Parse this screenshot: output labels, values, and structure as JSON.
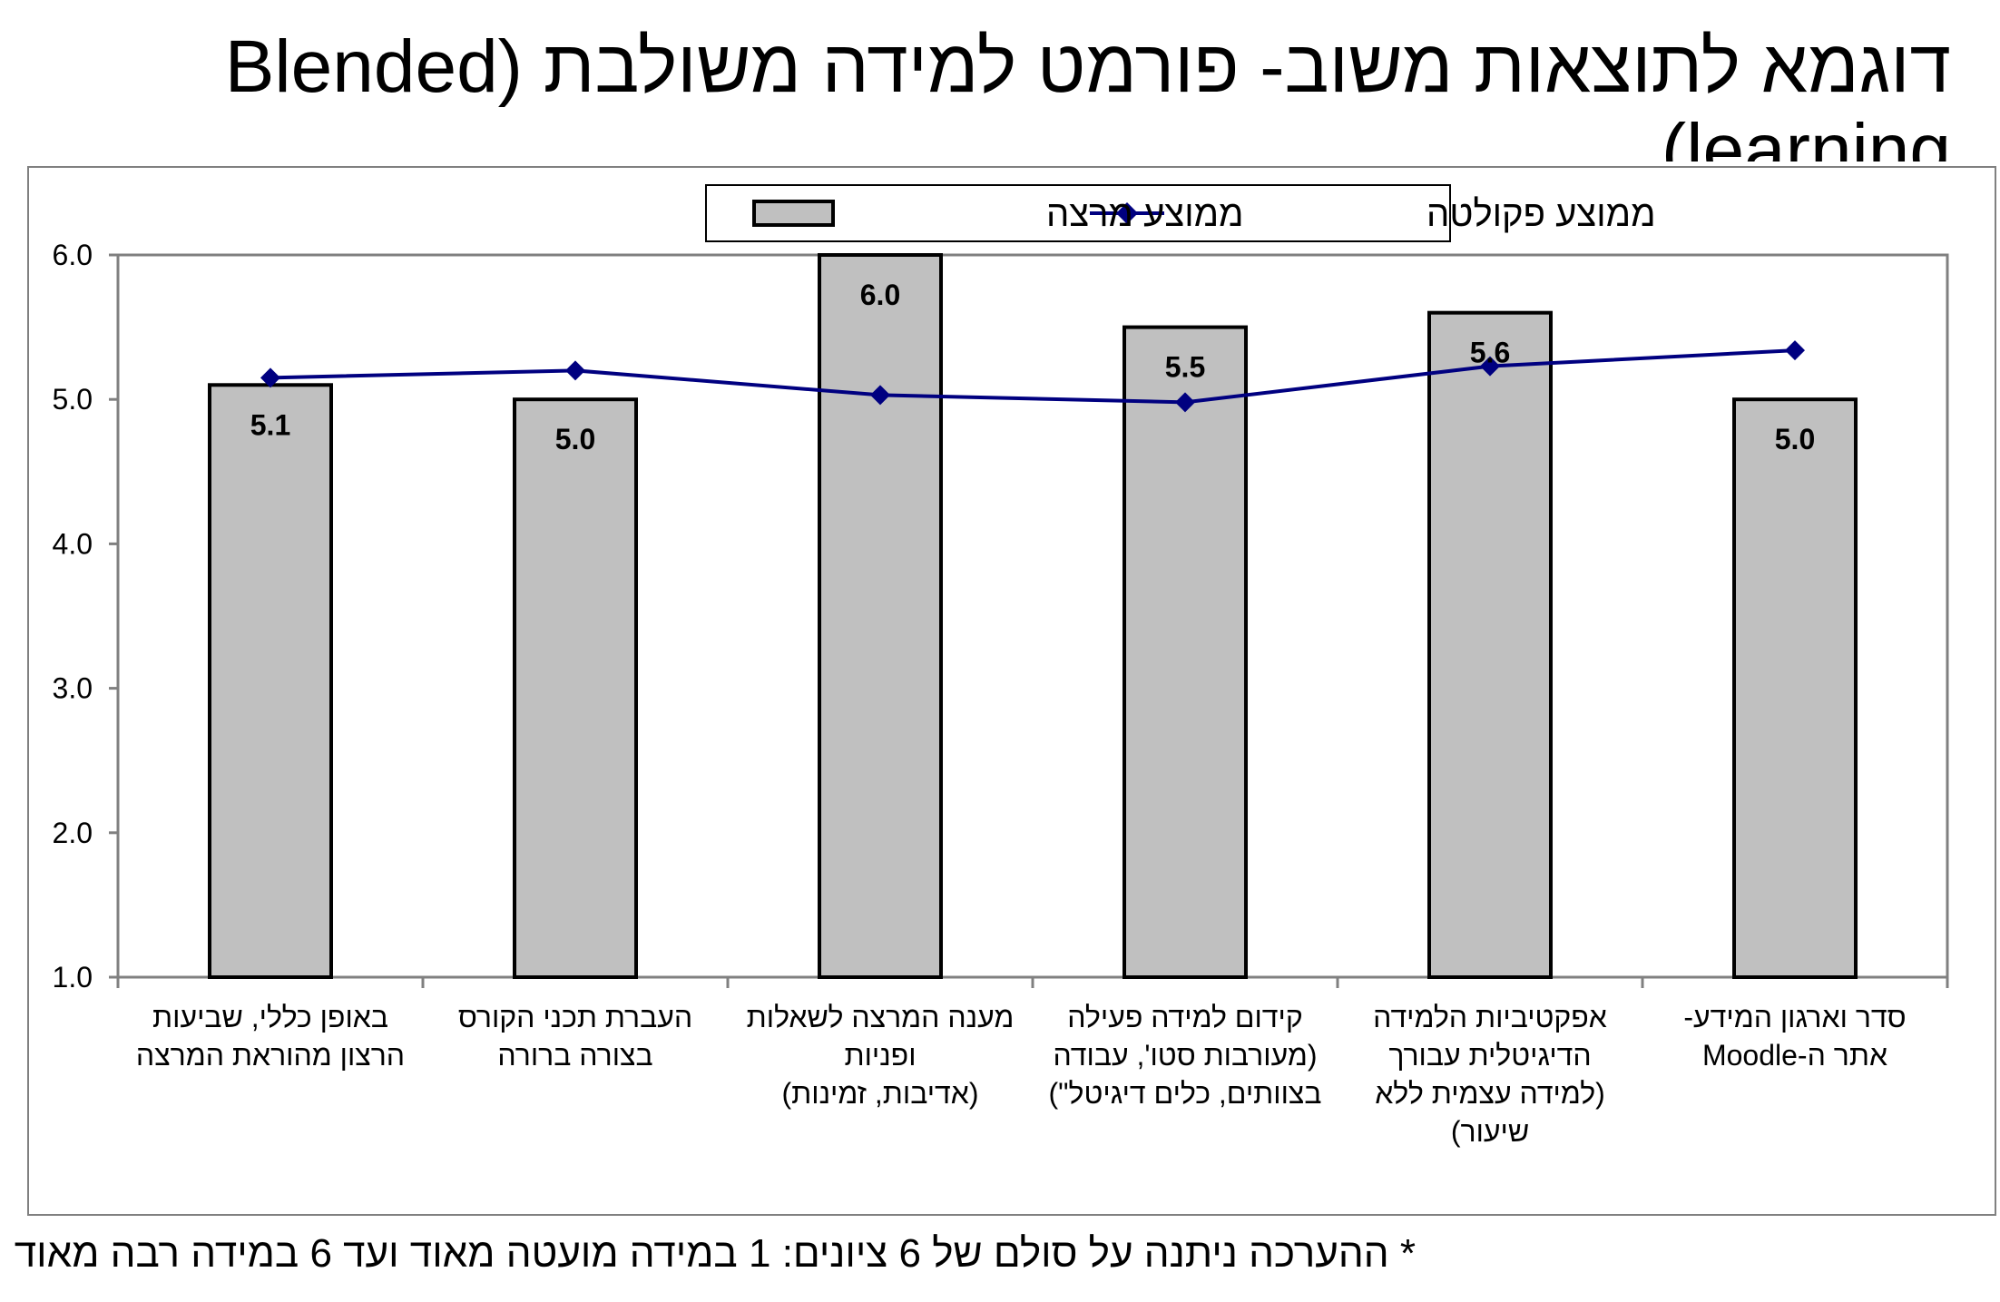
{
  "title": "דוגמא לתוצאות משוב- פורמט למידה משולבת (Blended learning)",
  "footnote": "* ההערכה ניתנה על סולם של 6 ציונים: 1 במידה מועטה מאוד ועד 6 במידה רבה מאוד",
  "chart_data": {
    "type": "bar",
    "categories": [
      [
        "באופן כללי, שביעות",
        "הרצון מהוראת המרצה"
      ],
      [
        "העברת תכני הקורס",
        "בצורה ברורה"
      ],
      [
        "מענה המרצה לשאלות",
        "ופניות",
        "(אדיבות, זמינות)"
      ],
      [
        "קידום למידה פעילה",
        "(מעורבות סטו', עבודה",
        "בצוותים, כלים דיגיטל\")"
      ],
      [
        "אפקטיביות הלמידה",
        "הדיגיטלית עבורך",
        "(למידה עצמית ללא",
        "שיעור)"
      ],
      [
        "סדר וארגון המידע-",
        "אתר ה-Moodle"
      ]
    ],
    "series": [
      {
        "name": "ממוצע מרצה",
        "kind": "bar",
        "values": [
          5.1,
          5.0,
          6.0,
          5.5,
          5.6,
          5.0
        ],
        "data_labels": [
          "5.1",
          "5.0",
          "6.0",
          "5.5",
          "5.6",
          "5.0"
        ],
        "color": "#c0c0c0",
        "edge": "#000000"
      },
      {
        "name": "ממוצע פקולטה",
        "kind": "line",
        "values": [
          5.15,
          5.2,
          5.03,
          4.98,
          5.23,
          5.34
        ],
        "color": "#000080"
      }
    ],
    "ylim": [
      1.0,
      6.0
    ],
    "yticks": [
      "1.0",
      "2.0",
      "3.0",
      "4.0",
      "5.0",
      "6.0"
    ],
    "legend_position": "top",
    "grid": false
  }
}
